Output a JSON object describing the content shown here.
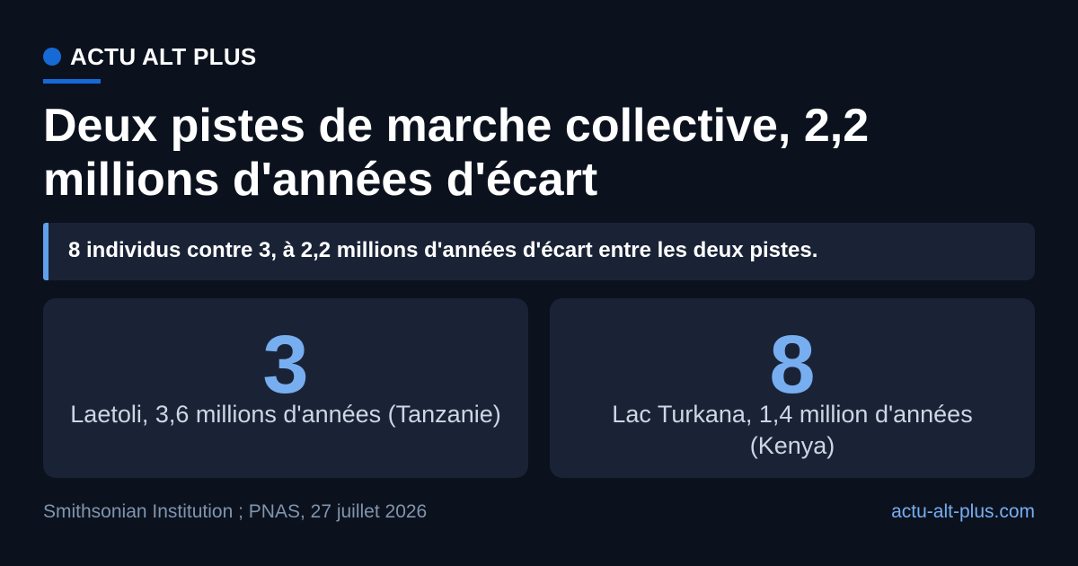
{
  "brand": {
    "name": "ACTU ALT PLUS"
  },
  "headline": "Deux pistes de marche collective, 2,2 millions d'années d'écart",
  "summary": "8 individus contre 3, à 2,2 millions d'années d'écart entre les deux pistes.",
  "stats": [
    {
      "value": "3",
      "label": "Laetoli, 3,6 millions d'années (Tanzanie)"
    },
    {
      "value": "8",
      "label": "Lac Turkana, 1,4 million d'années (Kenya)"
    }
  ],
  "footer": {
    "source": "Smithsonian Institution ; PNAS, 27 juillet 2026",
    "site": "actu-alt-plus.com"
  },
  "colors": {
    "background": "#0b121e",
    "card": "#1a2336",
    "accent": "#1769d6",
    "highlight": "#77aef0"
  }
}
